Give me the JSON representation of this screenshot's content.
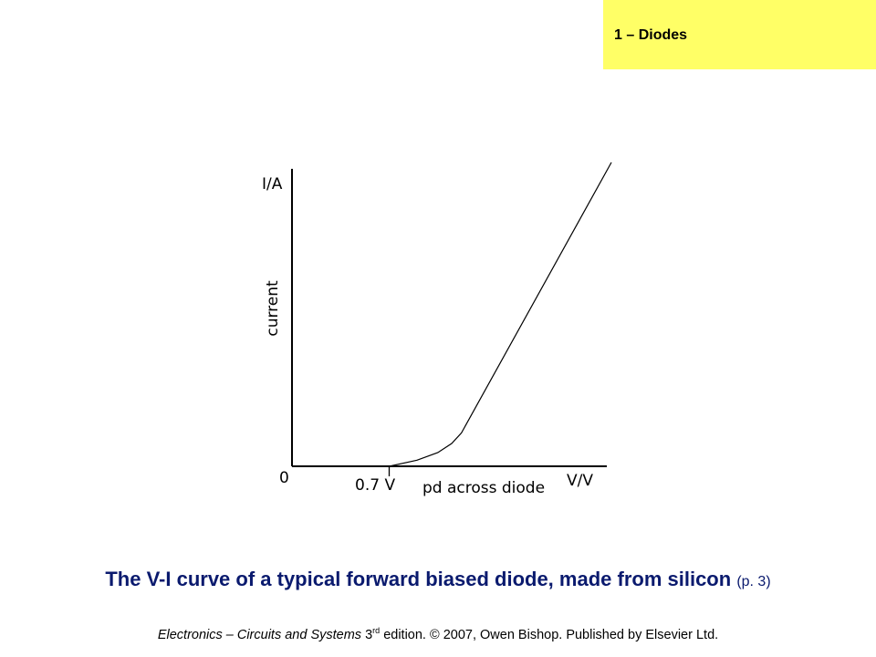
{
  "slide": {
    "section_tag": "1 – Diodes",
    "tag_color": "#ffff66",
    "caption": {
      "main": "The V-I curve of a typical forward biased diode, made from silicon",
      "ref": "(p. 3)",
      "color": "#0a1a6e"
    },
    "footer": {
      "book": "Electronics – Circuits and Systems",
      "ed_num": "3",
      "ed_sup": "rd",
      "rest": "edition. © 2007, Owen Bishop. Published by Elsevier Ltd."
    }
  },
  "chart_data": {
    "type": "line",
    "title": "",
    "xlabel": "pd across diode",
    "ylabel": "current",
    "x_unit_label": "V/V",
    "y_unit_label": "I/A",
    "origin_label": "0",
    "threshold_label": "0.7 V",
    "threshold_x": 0.7,
    "xlim": [
      0,
      2.3
    ],
    "ylim": [
      0,
      1
    ],
    "series": [
      {
        "values": [
          [
            0.7,
            0.0
          ],
          [
            0.9,
            0.02
          ],
          [
            1.05,
            0.045
          ],
          [
            1.15,
            0.075
          ],
          [
            1.22,
            0.11
          ],
          [
            2.3,
            1.0
          ]
        ]
      }
    ]
  }
}
